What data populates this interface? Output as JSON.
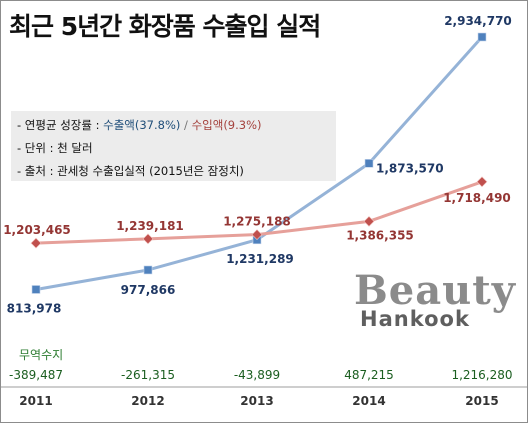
{
  "title": "최근 5년간 화장품 수출입 실적",
  "notes": {
    "growth_prefix": "- 연평균 성장률  :  ",
    "growth_export": "수출액(37.8%)",
    "growth_sep": " / ",
    "growth_import": "수입액(9.3%)",
    "unit": "- 단위 : 천 달러",
    "source": "- 출처 : 관세청 수출입실적 (2015년은 잠정치)"
  },
  "watermark": {
    "line1": "Beauty",
    "line2": "Hankook"
  },
  "trade_balance": {
    "label": "무역수지",
    "values": [
      "-389,487",
      "-261,315",
      "-43,899",
      "487,215",
      "1,216,280"
    ]
  },
  "colors": {
    "export_line": "#95b3d7",
    "export_marker": "#4f81bd",
    "export_label": "#1f3864",
    "import_line": "#e6a09a",
    "import_marker": "#c0504d",
    "import_label": "#943634",
    "trade_label": "#2e7d32",
    "trade_values": "#1b5e20"
  },
  "chart_data": {
    "type": "line",
    "categories": [
      "2011",
      "2012",
      "2013",
      "2014",
      "2015"
    ],
    "series": [
      {
        "key": "export",
        "values": [
          813978,
          977866,
          1231289,
          1873570,
          2934770
        ],
        "labels": [
          "813,978",
          "977,866",
          "1,231,289",
          "1,873,570",
          "2,934,770"
        ]
      },
      {
        "key": "import",
        "values": [
          1203465,
          1239181,
          1275188,
          1386355,
          1718490
        ],
        "labels": [
          "1,203,465",
          "1,239,181",
          "1,275,188",
          "1,386,355",
          "1,718,490"
        ]
      }
    ],
    "ylim": [
      650000,
      2960000
    ],
    "grid": false,
    "legend": "none"
  }
}
